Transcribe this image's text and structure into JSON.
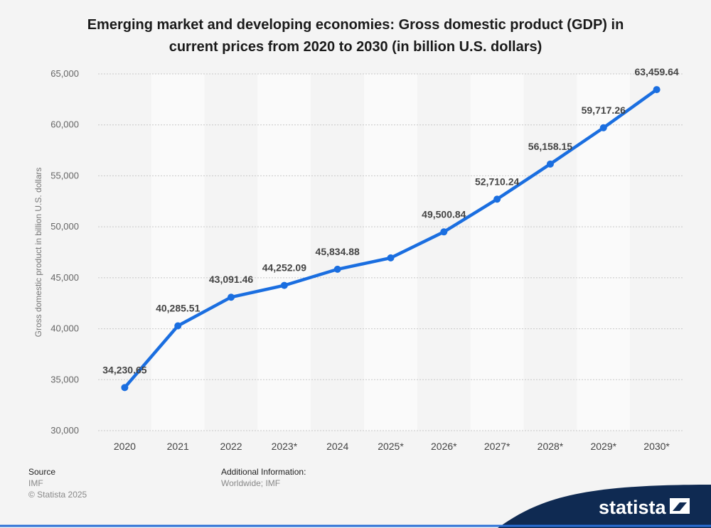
{
  "title_line1": "Emerging market and developing economies: Gross domestic product (GDP) in",
  "title_line2": "current prices from 2020 to 2030 (in billion U.S. dollars)",
  "footer": {
    "source_heading": "Source",
    "source_value": "IMF",
    "copyright": "© Statista 2025",
    "additional_heading": "Additional Information:",
    "additional_value": "Worldwide; IMF"
  },
  "brand": {
    "name": "statista",
    "color": "#0f2a52"
  },
  "chart_data": {
    "type": "line",
    "title": "Emerging market and developing economies: Gross domestic product (GDP) in current prices from 2020 to 2030 (in billion U.S. dollars)",
    "xlabel": "",
    "ylabel": "Gross domestic product in billion U.S. dollars",
    "categories": [
      "2020",
      "2021",
      "2022",
      "2023*",
      "2024",
      "2025*",
      "2026*",
      "2027*",
      "2028*",
      "2029*",
      "2030*"
    ],
    "values": [
      34230.65,
      40285.51,
      43091.46,
      44252.09,
      45834.88,
      46950,
      49500.84,
      52710.24,
      56158.15,
      59717.26,
      63459.64
    ],
    "data_labels": [
      "34,230.65",
      "40,285.51",
      "43,091.46",
      "44,252.09",
      "45,834.88",
      null,
      "49,500.84",
      "52,710.24",
      "56,158.15",
      "59,717.26",
      "63,459.64"
    ],
    "ylim": [
      30000,
      65000
    ],
    "yticks": [
      30000,
      35000,
      40000,
      45000,
      50000,
      55000,
      60000,
      65000
    ],
    "ytick_labels": [
      "30,000",
      "35,000",
      "40,000",
      "45,000",
      "50,000",
      "55,000",
      "60,000",
      "65,000"
    ],
    "grid": true,
    "line_color": "#1a6ee0"
  }
}
